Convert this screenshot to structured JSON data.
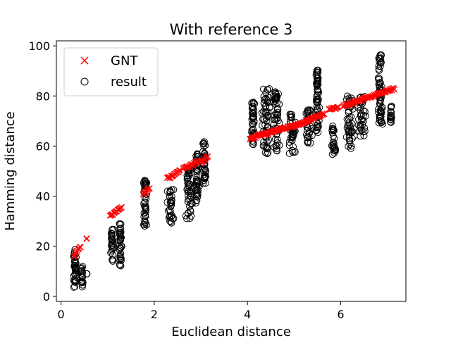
{
  "chart_data": {
    "type": "scatter",
    "title": "With reference 3",
    "xlabel": "Euclidean distance",
    "ylabel": "Hamming distance",
    "xlim": [
      -0.1,
      7.4
    ],
    "ylim": [
      -2,
      102
    ],
    "xticks": [
      0,
      2,
      4,
      6
    ],
    "yticks": [
      0,
      20,
      40,
      60,
      80,
      100
    ],
    "grid": false,
    "legend": {
      "placement": "top-left",
      "entries": [
        "GNT",
        "result"
      ]
    },
    "colors": {
      "gnt": "#ff0000",
      "result": "#000000"
    },
    "series": [
      {
        "name": "GNT",
        "marker": "x",
        "segments": [
          {
            "x": [
              0.28,
              0.42
            ],
            "y": [
              16,
              20
            ]
          },
          {
            "x": [
              0.55,
              0.55
            ],
            "y": [
              23,
              23
            ]
          },
          {
            "x": [
              1.05,
              1.3
            ],
            "y": [
              32,
              35.5
            ]
          },
          {
            "x": [
              1.76,
              1.9
            ],
            "y": [
              41,
              43
            ]
          },
          {
            "x": [
              2.28,
              2.55
            ],
            "y": [
              47,
              50
            ]
          },
          {
            "x": [
              2.62,
              2.95
            ],
            "y": [
              51,
              54
            ]
          },
          {
            "x": [
              2.98,
              3.15
            ],
            "y": [
              53.5,
              55.5
            ]
          },
          {
            "x": [
              4.05,
              4.75
            ],
            "y": [
              63,
              67
            ]
          },
          {
            "x": [
              4.75,
              5.25
            ],
            "y": [
              67,
              69.5
            ]
          },
          {
            "x": [
              5.25,
              5.65
            ],
            "y": [
              70,
              73
            ]
          },
          {
            "x": [
              5.75,
              5.95
            ],
            "y": [
              74.5,
              75.5
            ]
          },
          {
            "x": [
              6.05,
              6.85
            ],
            "y": [
              76,
              81
            ]
          },
          {
            "x": [
              6.85,
              7.15
            ],
            "y": [
              81,
              83
            ]
          }
        ]
      },
      {
        "name": "result",
        "marker": "o",
        "clusters": [
          {
            "x": 0.3,
            "xs": 0.05,
            "ymin": 2,
            "ymax": 19
          },
          {
            "x": 0.45,
            "xs": 0.03,
            "ymin": 3,
            "ymax": 12
          },
          {
            "x": 0.55,
            "xs": 0.01,
            "ymin": 9,
            "ymax": 9
          },
          {
            "x": 1.1,
            "xs": 0.04,
            "ymin": 14,
            "ymax": 27
          },
          {
            "x": 1.27,
            "xs": 0.04,
            "ymin": 12,
            "ymax": 29
          },
          {
            "x": 1.81,
            "xs": 0.05,
            "ymin": 28,
            "ymax": 47
          },
          {
            "x": 2.35,
            "xs": 0.09,
            "ymin": 29,
            "ymax": 43
          },
          {
            "x": 2.75,
            "xs": 0.09,
            "ymin": 31,
            "ymax": 52
          },
          {
            "x": 2.92,
            "xs": 0.05,
            "ymin": 37,
            "ymax": 57
          },
          {
            "x": 3.08,
            "xs": 0.04,
            "ymin": 45,
            "ymax": 62
          },
          {
            "x": 4.12,
            "xs": 0.05,
            "ymin": 60,
            "ymax": 78
          },
          {
            "x": 4.4,
            "xs": 0.12,
            "ymin": 57,
            "ymax": 83
          },
          {
            "x": 4.62,
            "xs": 0.09,
            "ymin": 58,
            "ymax": 82
          },
          {
            "x": 4.95,
            "xs": 0.1,
            "ymin": 56,
            "ymax": 73
          },
          {
            "x": 5.3,
            "xs": 0.1,
            "ymin": 61,
            "ymax": 75
          },
          {
            "x": 5.5,
            "xs": 0.05,
            "ymin": 65,
            "ymax": 91
          },
          {
            "x": 5.85,
            "xs": 0.06,
            "ymin": 56,
            "ymax": 68
          },
          {
            "x": 6.2,
            "xs": 0.12,
            "ymin": 59,
            "ymax": 80
          },
          {
            "x": 6.45,
            "xs": 0.1,
            "ymin": 63,
            "ymax": 80
          },
          {
            "x": 6.85,
            "xs": 0.06,
            "ymin": 68,
            "ymax": 97
          },
          {
            "x": 7.08,
            "xs": 0.02,
            "ymin": 69,
            "ymax": 76
          }
        ]
      }
    ]
  }
}
